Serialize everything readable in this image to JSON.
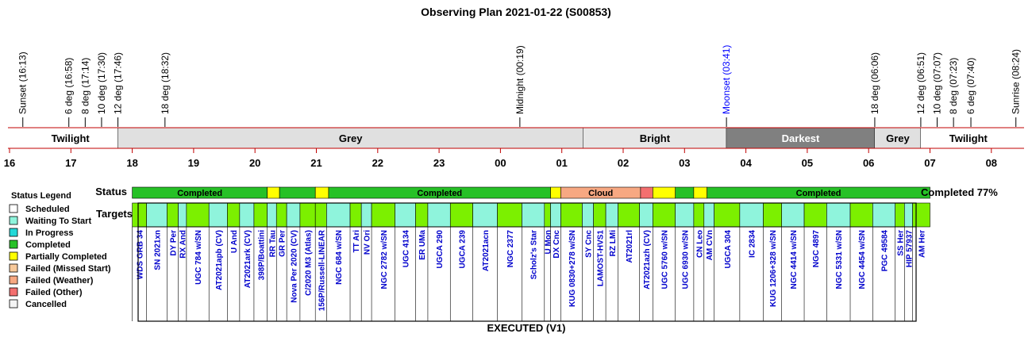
{
  "title": "Observing Plan 2021-01-22 (S00853)",
  "footer": "EXECUTED (V1)",
  "status_label": "Status",
  "targets_label": "Targets",
  "completed_summary": "Completed 77%",
  "legend": {
    "title": "Status Legend",
    "items": [
      {
        "label": "Scheduled",
        "color": "#ffffff"
      },
      {
        "label": "Waiting To Start",
        "color": "#8ff4dc"
      },
      {
        "label": "In Progress",
        "color": "#22d8d8"
      },
      {
        "label": "Completed",
        "color": "#26c126"
      },
      {
        "label": "Partially Completed",
        "color": "#ffff00"
      },
      {
        "label": "Failed (Missed Start)",
        "color": "#f7c99a"
      },
      {
        "label": "Failed (Weather)",
        "color": "#f7a882"
      },
      {
        "label": "Failed (Other)",
        "color": "#f36f6f"
      },
      {
        "label": "Cancelled",
        "color": "#f4f4f4"
      }
    ]
  },
  "colors": {
    "completed": "#26c126",
    "partial": "#ffff00",
    "cloud": "#f7a882",
    "failed_other": "#f36f6f",
    "target_done": "#7cf000",
    "target_wait": "#8ff4dc",
    "label_blue": "#0000cc",
    "moon_blue": "#0000ff",
    "darkest": "#808080",
    "grey": "#e0e0e0",
    "bright": "#e6e6e6",
    "axis_red": "#c00000"
  },
  "chart_data": {
    "type": "timeline",
    "time_axis_hours_utc": {
      "ticks": [
        "16",
        "17",
        "18",
        "19",
        "20",
        "21",
        "22",
        "23",
        "00",
        "01",
        "02",
        "03",
        "04",
        "05",
        "06",
        "07",
        "08"
      ],
      "range": [
        "16:00",
        "08:30"
      ]
    },
    "events": [
      {
        "label": "Sunset (16:13)",
        "time": "16:13"
      },
      {
        "label": "6 deg (16:58)",
        "time": "16:58"
      },
      {
        "label": "8 deg (17:14)",
        "time": "17:14"
      },
      {
        "label": "10 deg (17:30)",
        "time": "17:30"
      },
      {
        "label": "12 deg (17:46)",
        "time": "17:46"
      },
      {
        "label": "18 deg (18:32)",
        "time": "18:32"
      },
      {
        "label": "Midnight (00:19)",
        "time": "00:19"
      },
      {
        "label": "Moonset (03:41)",
        "time": "03:41",
        "color": "moon"
      },
      {
        "label": "18 deg (06:06)",
        "time": "06:06"
      },
      {
        "label": "12 deg (06:51)",
        "time": "06:51"
      },
      {
        "label": "10 deg (07:07)",
        "time": "07:07"
      },
      {
        "label": "8 deg (07:23)",
        "time": "07:23"
      },
      {
        "label": "6 deg (07:40)",
        "time": "07:40"
      },
      {
        "label": "Sunrise (08:24)",
        "time": "08:24"
      }
    ],
    "sky_bands": [
      {
        "label": "Twilight",
        "start": "16:13",
        "end": "17:46",
        "shade": "white"
      },
      {
        "label": "Grey",
        "start": "17:46",
        "end": "01:21",
        "shade": "grey"
      },
      {
        "label": "Bright",
        "start": "01:21",
        "end": "03:41",
        "shade": "bright"
      },
      {
        "label": "Darkest",
        "start": "03:41",
        "end": "06:06",
        "shade": "darkest"
      },
      {
        "label": "Grey",
        "start": "06:06",
        "end": "06:51",
        "shade": "grey"
      },
      {
        "label": "Twilight",
        "start": "06:51",
        "end": "08:24",
        "shade": "white"
      }
    ],
    "status_segments": [
      {
        "start": "18:00",
        "end": "20:12",
        "status": "completed",
        "label": "Completed"
      },
      {
        "start": "20:12",
        "end": "20:24",
        "status": "partial",
        "label": ""
      },
      {
        "start": "20:24",
        "end": "20:59",
        "status": "completed",
        "label": ""
      },
      {
        "start": "20:59",
        "end": "21:12",
        "status": "partial",
        "label": ""
      },
      {
        "start": "21:12",
        "end": "00:49",
        "status": "completed",
        "label": "Completed"
      },
      {
        "start": "00:49",
        "end": "00:59",
        "status": "partial",
        "label": ""
      },
      {
        "start": "00:59",
        "end": "02:17",
        "status": "cloud",
        "label": "Cloud"
      },
      {
        "start": "02:17",
        "end": "02:29",
        "status": "failed_other",
        "label": ""
      },
      {
        "start": "02:29",
        "end": "02:51",
        "status": "partial",
        "label": ""
      },
      {
        "start": "02:51",
        "end": "03:09",
        "status": "completed",
        "label": ""
      },
      {
        "start": "03:09",
        "end": "03:22",
        "status": "partial",
        "label": ""
      },
      {
        "start": "03:22",
        "end": "07:00",
        "status": "completed",
        "label": "Completed"
      }
    ],
    "targets": [
      {
        "name": "WDS GRB 34",
        "start": "18:00",
        "end": "18:14",
        "state": "done"
      },
      {
        "name": "SN 2021xn",
        "start": "18:14",
        "end": "18:34",
        "state": "wait"
      },
      {
        "name": "DY Per",
        "start": "18:34",
        "end": "18:45",
        "state": "done"
      },
      {
        "name": "RX And",
        "start": "18:45",
        "end": "18:53",
        "state": "wait"
      },
      {
        "name": "UGC 784 w/SN",
        "start": "18:53",
        "end": "19:15",
        "state": "done"
      },
      {
        "name": "AT2021apb (CV)",
        "start": "19:15",
        "end": "19:33",
        "state": "wait"
      },
      {
        "name": "U And",
        "start": "19:33",
        "end": "19:45",
        "state": "done"
      },
      {
        "name": "AT2021ark (CV)",
        "start": "19:45",
        "end": "19:59",
        "state": "wait"
      },
      {
        "name": "398P/Boattini",
        "start": "19:59",
        "end": "20:12",
        "state": "done"
      },
      {
        "name": "RR Tau",
        "start": "20:12",
        "end": "20:21",
        "state": "wait"
      },
      {
        "name": "GR Per",
        "start": "20:21",
        "end": "20:31",
        "state": "done"
      },
      {
        "name": "Nova Per 2020 (CV)",
        "start": "20:31",
        "end": "20:44",
        "state": "wait"
      },
      {
        "name": "C/2020 M3 (Atlas)",
        "start": "20:44",
        "end": "20:59",
        "state": "done"
      },
      {
        "name": "156P/Russell-LINEAR",
        "start": "20:59",
        "end": "21:10",
        "state": "done"
      },
      {
        "name": "NGC 684 w/SN",
        "start": "21:10",
        "end": "21:33",
        "state": "wait"
      },
      {
        "name": "TT Ari",
        "start": "21:33",
        "end": "21:44",
        "state": "done"
      },
      {
        "name": "NV Ori",
        "start": "21:44",
        "end": "21:54",
        "state": "wait"
      },
      {
        "name": "NGC 2782 w/SN",
        "start": "21:54",
        "end": "22:17",
        "state": "done"
      },
      {
        "name": "UGC 4134",
        "start": "22:17",
        "end": "22:37",
        "state": "wait"
      },
      {
        "name": "ER UMa",
        "start": "22:37",
        "end": "22:49",
        "state": "done"
      },
      {
        "name": "UGCA 290",
        "start": "22:49",
        "end": "23:11",
        "state": "wait"
      },
      {
        "name": "UGCA 239",
        "start": "23:11",
        "end": "23:33",
        "state": "done"
      },
      {
        "name": "AT2021acn",
        "start": "23:33",
        "end": "23:57",
        "state": "wait"
      },
      {
        "name": "NGC 2377",
        "start": "23:57",
        "end": "00:21",
        "state": "done"
      },
      {
        "name": "Scholz's Star",
        "start": "00:21",
        "end": "00:43",
        "state": "wait"
      },
      {
        "name": "U Mon",
        "start": "00:43",
        "end": "00:49",
        "state": "done"
      },
      {
        "name": "DX Cnc",
        "start": "00:49",
        "end": "00:59",
        "state": "wait"
      },
      {
        "name": "KUG 0830+278 w/SN",
        "start": "00:59",
        "end": "01:20",
        "state": "done"
      },
      {
        "name": "SY Cnc",
        "start": "01:20",
        "end": "01:31",
        "state": "wait"
      },
      {
        "name": "LAMOST-HVS1",
        "start": "01:31",
        "end": "01:43",
        "state": "done"
      },
      {
        "name": "RZ LMi",
        "start": "01:43",
        "end": "01:55",
        "state": "wait"
      },
      {
        "name": "AT2021rl",
        "start": "01:55",
        "end": "02:16",
        "state": "done"
      },
      {
        "name": "AT2021azh (CV)",
        "start": "02:16",
        "end": "02:29",
        "state": "wait"
      },
      {
        "name": "UGC 5760 w/SN",
        "start": "02:29",
        "end": "02:51",
        "state": "done"
      },
      {
        "name": "UGC 6930 w/SN",
        "start": "02:51",
        "end": "03:09",
        "state": "wait"
      },
      {
        "name": "CN Leo",
        "start": "03:09",
        "end": "03:19",
        "state": "done"
      },
      {
        "name": "AM CVn",
        "start": "03:19",
        "end": "03:29",
        "state": "wait"
      },
      {
        "name": "UGCA 304",
        "start": "03:29",
        "end": "03:54",
        "state": "done"
      },
      {
        "name": "IC 2834",
        "start": "03:54",
        "end": "04:17",
        "state": "wait"
      },
      {
        "name": "KUG 1206+328 w/SN",
        "start": "04:17",
        "end": "04:35",
        "state": "done"
      },
      {
        "name": "NGC 4414 w/SN",
        "start": "04:35",
        "end": "04:57",
        "state": "wait"
      },
      {
        "name": "NGC 4897",
        "start": "04:57",
        "end": "05:19",
        "state": "done"
      },
      {
        "name": "NGC 5331 w/SN",
        "start": "05:19",
        "end": "05:42",
        "state": "wait"
      },
      {
        "name": "NGC 4454 w/SN",
        "start": "05:42",
        "end": "06:04",
        "state": "done"
      },
      {
        "name": "PGC 49584",
        "start": "06:04",
        "end": "06:26",
        "state": "wait"
      },
      {
        "name": "SS Her",
        "start": "06:26",
        "end": "06:35",
        "state": "done"
      },
      {
        "name": "HIP 57937",
        "start": "06:35",
        "end": "06:43",
        "state": "wait"
      },
      {
        "name": "AM Her",
        "start": "06:43",
        "end": "07:00",
        "state": "done"
      }
    ]
  }
}
